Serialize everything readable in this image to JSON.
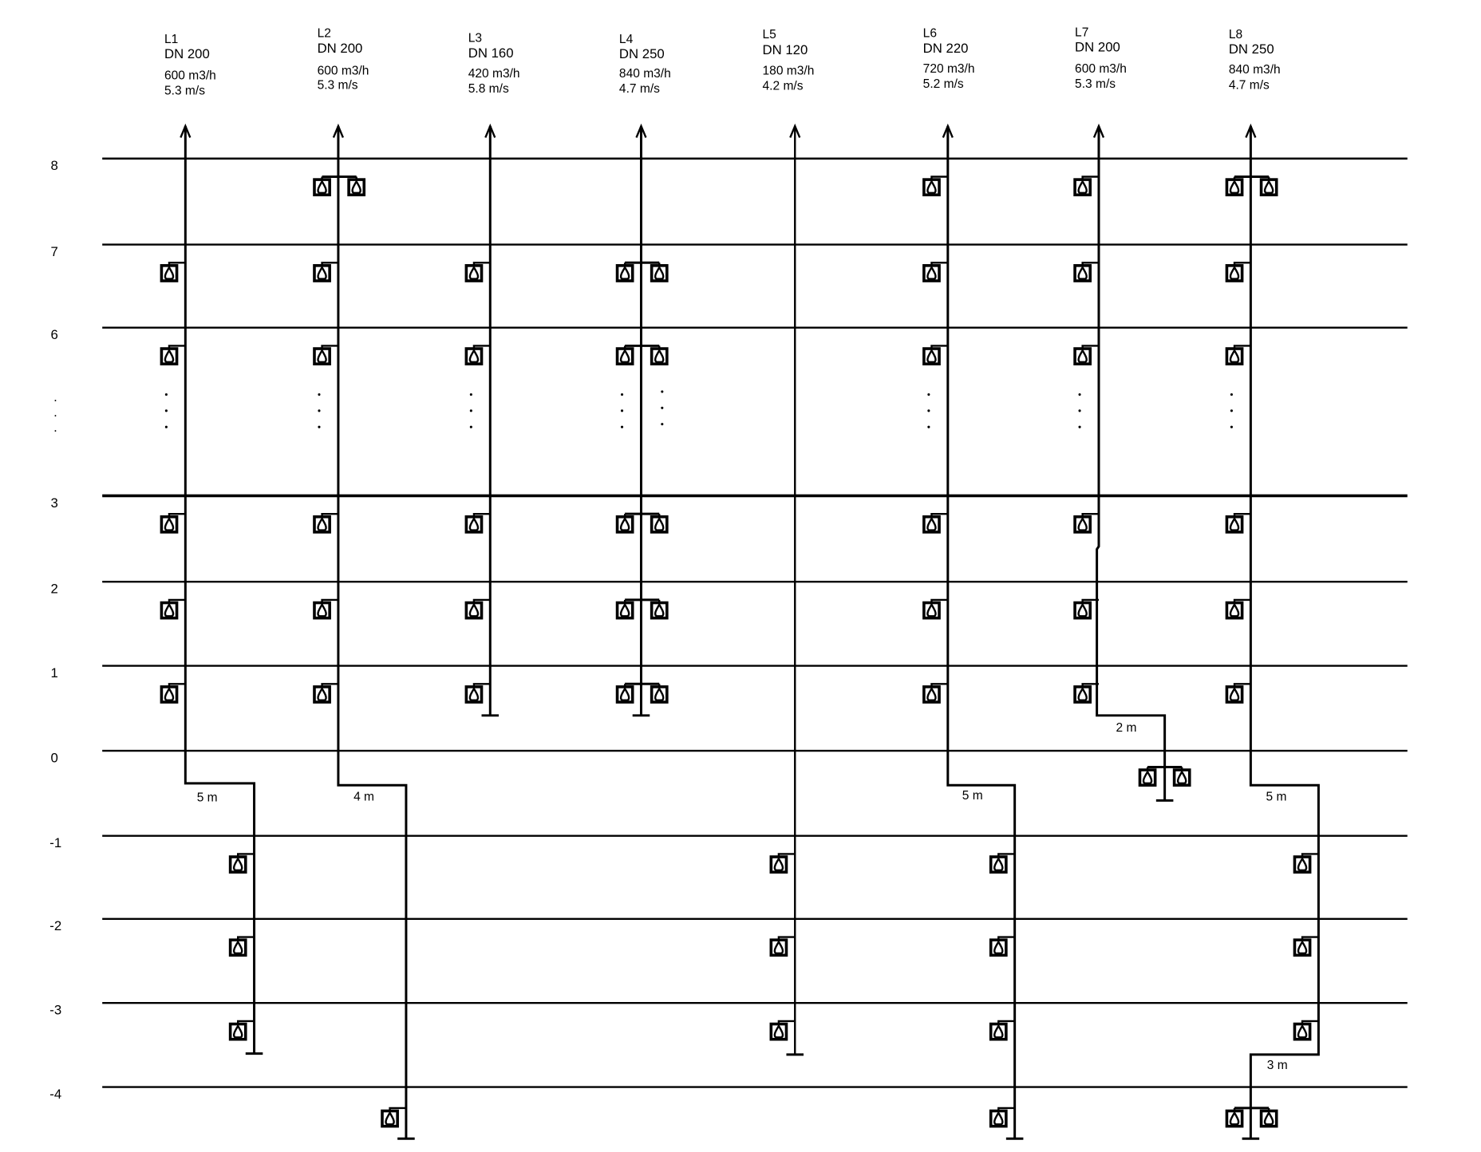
{
  "floors": [
    {
      "label": "8",
      "level": 8
    },
    {
      "label": "7",
      "level": 7
    },
    {
      "label": "6",
      "level": 6
    },
    {
      "label": "3",
      "level": 3
    },
    {
      "label": "2",
      "level": 2
    },
    {
      "label": "1",
      "level": 1
    },
    {
      "label": "0",
      "level": 0
    },
    {
      "label": "-1",
      "level": -1
    },
    {
      "label": "-2",
      "level": -2
    },
    {
      "label": "-3",
      "level": -3
    },
    {
      "label": "-4",
      "level": -4
    }
  ],
  "ellipsis": ".",
  "risers": [
    {
      "name": "L1",
      "dn": "DN 200",
      "flow": "600 m3/h",
      "velocity": "5.3 m/s",
      "offset_label": "5 m",
      "sinks_above": {
        "8": 0,
        "7": 1,
        "6": 1,
        "3": 1,
        "2": 1,
        "1": 1
      },
      "sinks_below": {
        "-1": 1,
        "-2": 1,
        "-3": 1
      }
    },
    {
      "name": "L2",
      "dn": "DN 200",
      "flow": "600 m3/h",
      "velocity": "5.3 m/s",
      "offset_label": "4 m",
      "sinks_above": {
        "8": 2,
        "7": 1,
        "6": 1,
        "3": 1,
        "2": 1,
        "1": 1
      },
      "sinks_below": {
        "-4": 1
      }
    },
    {
      "name": "L3",
      "dn": "DN 160",
      "flow": "420 m3/h",
      "velocity": "5.8 m/s",
      "sinks_above": {
        "7": 1,
        "6": 1,
        "3": 1,
        "2": 1,
        "1": 1
      }
    },
    {
      "name": "L4",
      "dn": "DN 250",
      "flow": "840 m3/h",
      "velocity": "4.7 m/s",
      "sinks_above": {
        "7": 2,
        "6": 2,
        "3": 2,
        "2": 2,
        "1": 2
      }
    },
    {
      "name": "L5",
      "dn": "DN 120",
      "flow": "180 m3/h",
      "velocity": "4.2 m/s",
      "sinks_below": {
        "-1": 1,
        "-2": 1,
        "-3": 1
      }
    },
    {
      "name": "L6",
      "dn": "DN 220",
      "flow": "720 m3/h",
      "velocity": "5.2 m/s",
      "offset_label": "5 m",
      "sinks_above": {
        "8": 1,
        "7": 1,
        "6": 1,
        "3": 1,
        "2": 1,
        "1": 1
      },
      "sinks_below": {
        "-1": 1,
        "-2": 1,
        "-3": 1,
        "-4": 1
      }
    },
    {
      "name": "L7",
      "dn": "DN 200",
      "flow": "600 m3/h",
      "velocity": "5.3 m/s",
      "offset_label": "2 m",
      "sinks_above": {
        "8": 1,
        "7": 1,
        "6": 1,
        "3": 1,
        "2": 1,
        "1": 1
      },
      "sinks_below": {
        "0": 2
      }
    },
    {
      "name": "L8",
      "dn": "DN 250",
      "flow": "840 m3/h",
      "velocity": "4.7 m/s",
      "offset_label": "5 m",
      "offset_label_2": "3 m",
      "sinks_above": {
        "8": 2,
        "7": 1,
        "6": 1,
        "3": 1,
        "2": 1,
        "1": 1
      },
      "sinks_below": {
        "-1": 1,
        "-2": 1,
        "-3": 1,
        "-4": 2
      }
    }
  ]
}
